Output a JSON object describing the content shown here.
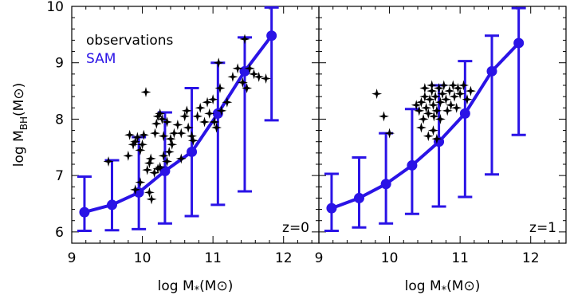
{
  "chart_data": [
    {
      "type": "scatter",
      "panel_label": "z=0",
      "xlabel": "log M*(M⊙)",
      "ylabel": "log MBH(M⊙)",
      "xlim": [
        9,
        12.5
      ],
      "ylim": [
        5.8,
        10
      ],
      "x_ticks": [
        9,
        10,
        11,
        12
      ],
      "y_ticks": [
        6,
        7,
        8,
        9,
        10
      ],
      "legend": [
        {
          "label": "observations",
          "color": "#000000"
        },
        {
          "label": "SAM",
          "color": "#2a13e6"
        }
      ],
      "series": [
        {
          "name": "SAM",
          "type": "line",
          "color": "#2a13e6",
          "x": [
            9.18,
            9.57,
            9.95,
            10.32,
            10.7,
            11.07,
            11.45,
            11.83
          ],
          "y": [
            6.35,
            6.48,
            6.7,
            7.08,
            7.42,
            8.1,
            8.85,
            9.48
          ],
          "y_low": [
            6.02,
            6.03,
            6.05,
            6.15,
            6.28,
            6.48,
            6.72,
            7.98
          ],
          "y_high": [
            6.98,
            7.27,
            7.68,
            8.12,
            8.55,
            9.0,
            9.45,
            9.98
          ]
        },
        {
          "name": "observations",
          "type": "scatter",
          "color": "#000000",
          "points": [
            [
              9.52,
              7.25
            ],
            [
              9.8,
              7.35
            ],
            [
              9.82,
              7.72
            ],
            [
              9.87,
              7.55
            ],
            [
              9.9,
              7.6
            ],
            [
              9.93,
              7.68
            ],
            [
              9.97,
              7.45
            ],
            [
              10.0,
              7.55
            ],
            [
              10.02,
              7.72
            ],
            [
              9.9,
              6.75
            ],
            [
              9.97,
              6.88
            ],
            [
              10.07,
              7.1
            ],
            [
              10.1,
              7.22
            ],
            [
              10.12,
              7.3
            ],
            [
              10.17,
              7.05
            ],
            [
              10.22,
              7.12
            ],
            [
              10.25,
              7.15
            ],
            [
              10.3,
              7.35
            ],
            [
              10.35,
              7.25
            ],
            [
              10.38,
              7.42
            ],
            [
              10.18,
              7.75
            ],
            [
              10.2,
              7.92
            ],
            [
              10.22,
              8.05
            ],
            [
              10.25,
              8.1
            ],
            [
              10.28,
              8.0
            ],
            [
              10.3,
              7.7
            ],
            [
              10.35,
              7.95
            ],
            [
              10.4,
              7.65
            ],
            [
              10.42,
              7.55
            ],
            [
              10.45,
              7.75
            ],
            [
              10.5,
              7.9
            ],
            [
              10.55,
              7.75
            ],
            [
              10.6,
              8.05
            ],
            [
              10.63,
              8.15
            ],
            [
              10.65,
              7.85
            ],
            [
              10.7,
              7.7
            ],
            [
              10.72,
              7.62
            ],
            [
              10.78,
              8.05
            ],
            [
              10.82,
              8.2
            ],
            [
              10.88,
              7.95
            ],
            [
              10.92,
              8.3
            ],
            [
              10.95,
              8.1
            ],
            [
              11.0,
              8.35
            ],
            [
              11.02,
              7.95
            ],
            [
              11.05,
              7.85
            ],
            [
              11.1,
              8.55
            ],
            [
              11.08,
              9.0
            ],
            [
              11.12,
              8.15
            ],
            [
              11.2,
              8.3
            ],
            [
              11.28,
              8.75
            ],
            [
              11.35,
              8.9
            ],
            [
              11.42,
              8.65
            ],
            [
              11.45,
              9.42
            ],
            [
              11.48,
              8.55
            ],
            [
              11.52,
              8.9
            ],
            [
              11.58,
              8.8
            ],
            [
              11.65,
              8.75
            ],
            [
              11.75,
              8.72
            ],
            [
              10.05,
              8.48
            ],
            [
              10.13,
              6.58
            ],
            [
              10.1,
              6.7
            ],
            [
              10.55,
              7.3
            ]
          ]
        }
      ]
    },
    {
      "type": "scatter",
      "panel_label": "z=1",
      "xlabel": "log M*(M⊙)",
      "xlim": [
        9,
        12.5
      ],
      "ylim": [
        5.8,
        10
      ],
      "x_ticks": [
        9,
        10,
        11,
        12
      ],
      "y_ticks": [
        6,
        7,
        8,
        9,
        10
      ],
      "series": [
        {
          "name": "SAM",
          "type": "line",
          "color": "#2a13e6",
          "x": [
            9.18,
            9.57,
            9.95,
            10.32,
            10.7,
            11.07,
            11.45,
            11.83
          ],
          "y": [
            6.42,
            6.6,
            6.85,
            7.18,
            7.6,
            8.1,
            8.85,
            9.35
          ],
          "y_low": [
            6.02,
            6.08,
            6.15,
            6.32,
            6.45,
            6.62,
            7.02,
            7.72
          ],
          "y_high": [
            7.03,
            7.32,
            7.75,
            8.18,
            8.6,
            9.03,
            9.48,
            9.97
          ]
        },
        {
          "name": "observations",
          "type": "scatter",
          "color": "#000000",
          "points": [
            [
              9.82,
              8.45
            ],
            [
              9.92,
              8.05
            ],
            [
              10.0,
              7.75
            ],
            [
              10.38,
              8.25
            ],
            [
              10.42,
              8.15
            ],
            [
              10.45,
              8.3
            ],
            [
              10.48,
              8.0
            ],
            [
              10.5,
              8.4
            ],
            [
              10.52,
              8.2
            ],
            [
              10.55,
              8.1
            ],
            [
              10.57,
              8.35
            ],
            [
              10.6,
              8.5
            ],
            [
              10.62,
              8.25
            ],
            [
              10.63,
              8.05
            ],
            [
              10.65,
              8.4
            ],
            [
              10.67,
              8.15
            ],
            [
              10.7,
              8.55
            ],
            [
              10.72,
              8.3
            ],
            [
              10.72,
              8.0
            ],
            [
              10.75,
              8.45
            ],
            [
              10.77,
              8.6
            ],
            [
              10.8,
              8.35
            ],
            [
              10.82,
              8.15
            ],
            [
              10.85,
              8.5
            ],
            [
              10.87,
              8.25
            ],
            [
              10.9,
              8.6
            ],
            [
              10.92,
              8.4
            ],
            [
              10.95,
              8.2
            ],
            [
              10.97,
              8.55
            ],
            [
              11.0,
              8.45
            ],
            [
              11.05,
              8.6
            ],
            [
              11.1,
              8.35
            ],
            [
              11.15,
              8.5
            ],
            [
              10.45,
              7.85
            ],
            [
              10.55,
              7.7
            ],
            [
              10.62,
              7.8
            ],
            [
              10.67,
              7.65
            ],
            [
              10.5,
              8.55
            ],
            [
              10.6,
              8.6
            ]
          ]
        }
      ]
    }
  ]
}
